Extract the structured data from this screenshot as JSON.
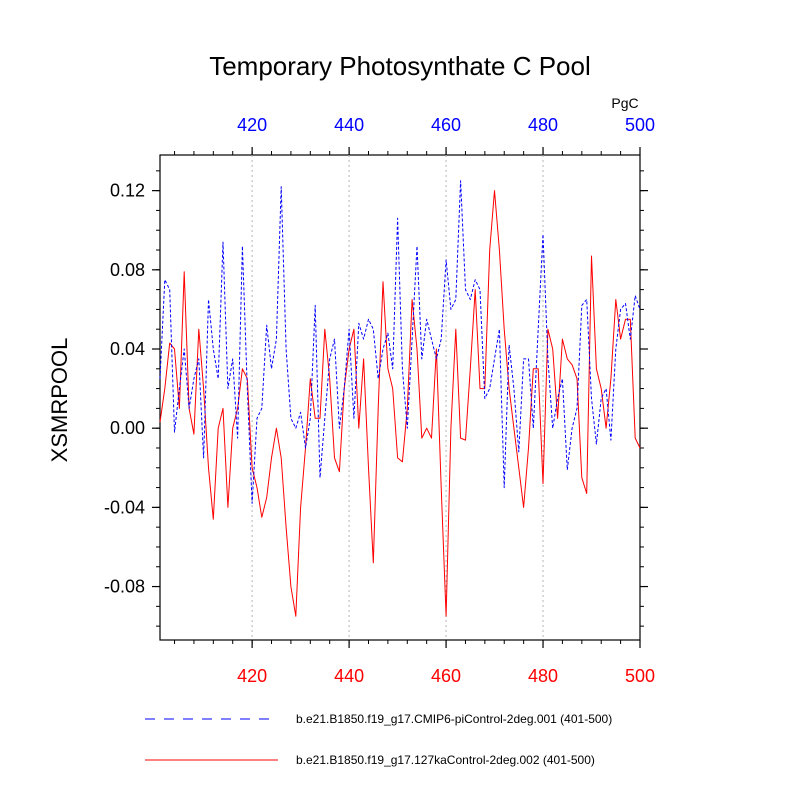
{
  "chart_data": {
    "type": "line",
    "title": "Temporary Photosynthate C Pool",
    "units": "PgC",
    "ylabel": "XSMRPOOL",
    "xlim": [
      401,
      500
    ],
    "ylim": [
      -0.107,
      0.138
    ],
    "yticks": [
      -0.08,
      -0.04,
      0.0,
      0.04,
      0.08,
      0.12
    ],
    "ytick_labels": [
      "-0.08",
      "-0.04",
      "0.00",
      "0.04",
      "0.08",
      "0.12"
    ],
    "xticks": [
      420,
      440,
      460,
      480,
      500
    ],
    "xtick_labels": [
      "420",
      "440",
      "460",
      "480",
      "500"
    ],
    "grid_x": [
      420,
      440,
      460,
      480
    ],
    "series": [
      {
        "name": "b.e21.B1850.f19_g17.CMIP6-piControl-2deg.001 (401-500)",
        "color": "#0000ff",
        "dash": "dashed",
        "axis": "top",
        "x": [
          401,
          402,
          403,
          404,
          405,
          406,
          407,
          408,
          409,
          410,
          411,
          412,
          413,
          414,
          415,
          416,
          417,
          418,
          419,
          420,
          421,
          422,
          423,
          424,
          425,
          426,
          427,
          428,
          429,
          430,
          431,
          432,
          433,
          434,
          435,
          436,
          437,
          438,
          439,
          440,
          441,
          442,
          443,
          444,
          445,
          446,
          447,
          448,
          449,
          450,
          451,
          452,
          453,
          454,
          455,
          456,
          457,
          458,
          459,
          460,
          461,
          462,
          463,
          464,
          465,
          466,
          467,
          468,
          469,
          470,
          471,
          472,
          473,
          474,
          475,
          476,
          477,
          478,
          479,
          480,
          481,
          482,
          483,
          484,
          485,
          486,
          487,
          488,
          489,
          490,
          491,
          492,
          493,
          494,
          495,
          496,
          497,
          498,
          499,
          500
        ],
        "values": [
          0.025,
          0.075,
          0.07,
          -0.002,
          0.02,
          0.04,
          0.01,
          0.025,
          0.035,
          -0.015,
          0.065,
          0.04,
          0.025,
          0.094,
          0.02,
          0.035,
          -0.005,
          0.092,
          0.02,
          -0.038,
          0.005,
          0.01,
          0.052,
          0.03,
          0.045,
          0.122,
          0.04,
          0.005,
          0.0,
          0.008,
          -0.01,
          0.005,
          0.062,
          -0.025,
          0.005,
          0.035,
          0.045,
          0.0,
          0.02,
          0.05,
          0.005,
          0.053,
          0.045,
          0.055,
          0.05,
          0.025,
          0.04,
          0.048,
          0.03,
          0.106,
          0.03,
          0.0,
          0.045,
          0.092,
          0.035,
          0.055,
          0.045,
          0.035,
          0.045,
          0.085,
          0.06,
          0.065,
          0.125,
          0.07,
          0.065,
          0.075,
          0.07,
          0.015,
          0.02,
          0.035,
          0.05,
          -0.03,
          0.042,
          0.02,
          -0.012,
          0.035,
          0.035,
          0.0,
          0.05,
          0.098,
          0.035,
          0.0,
          0.015,
          0.025,
          -0.021,
          0.0,
          0.01,
          0.062,
          0.065,
          0.015,
          -0.008,
          0.015,
          0.02,
          -0.006,
          0.04,
          0.06,
          0.063,
          0.045,
          0.067,
          0.06
        ]
      },
      {
        "name": "b.e21.B1850.f19_g17.127kaControl-2deg.002 (401-500)",
        "color": "#ff0000",
        "dash": "solid",
        "axis": "bottom",
        "x": [
          401,
          402,
          403,
          404,
          405,
          406,
          407,
          408,
          409,
          410,
          411,
          412,
          413,
          414,
          415,
          416,
          417,
          418,
          419,
          420,
          421,
          422,
          423,
          424,
          425,
          426,
          427,
          428,
          429,
          430,
          431,
          432,
          433,
          434,
          435,
          436,
          437,
          438,
          439,
          440,
          441,
          442,
          443,
          444,
          445,
          446,
          447,
          448,
          449,
          450,
          451,
          452,
          453,
          454,
          455,
          456,
          457,
          458,
          459,
          460,
          461,
          462,
          463,
          464,
          465,
          466,
          467,
          468,
          469,
          470,
          471,
          472,
          473,
          474,
          475,
          476,
          477,
          478,
          479,
          480,
          481,
          482,
          483,
          484,
          485,
          486,
          487,
          488,
          489,
          490,
          491,
          492,
          493,
          494,
          495,
          496,
          497,
          498,
          499,
          500
        ],
        "values": [
          0.003,
          0.02,
          0.043,
          0.04,
          0.01,
          0.079,
          0.01,
          -0.003,
          0.05,
          0.02,
          -0.02,
          -0.046,
          0.0,
          0.01,
          -0.04,
          0.0,
          0.01,
          0.03,
          0.025,
          -0.02,
          -0.03,
          -0.045,
          -0.035,
          -0.015,
          0.0,
          -0.015,
          -0.05,
          -0.08,
          -0.095,
          -0.04,
          -0.01,
          0.025,
          0.005,
          0.005,
          0.05,
          0.025,
          -0.015,
          -0.022,
          0.02,
          0.04,
          0.05,
          0.0,
          0.035,
          -0.02,
          -0.068,
          0.01,
          0.074,
          0.03,
          0.02,
          -0.015,
          -0.017,
          0.01,
          0.065,
          0.04,
          -0.005,
          0.0,
          -0.005,
          0.04,
          -0.03,
          -0.095,
          0.0,
          0.05,
          -0.005,
          -0.006,
          0.03,
          0.07,
          0.02,
          0.02,
          0.09,
          0.12,
          0.09,
          0.05,
          0.02,
          0.0,
          -0.02,
          -0.04,
          -0.01,
          0.03,
          0.03,
          -0.028,
          0.05,
          0.04,
          0.005,
          0.045,
          0.035,
          0.032,
          0.025,
          -0.025,
          -0.033,
          0.087,
          0.03,
          0.02,
          0.0,
          0.025,
          0.065,
          0.045,
          0.055,
          0.055,
          -0.005,
          -0.01
        ]
      }
    ]
  }
}
